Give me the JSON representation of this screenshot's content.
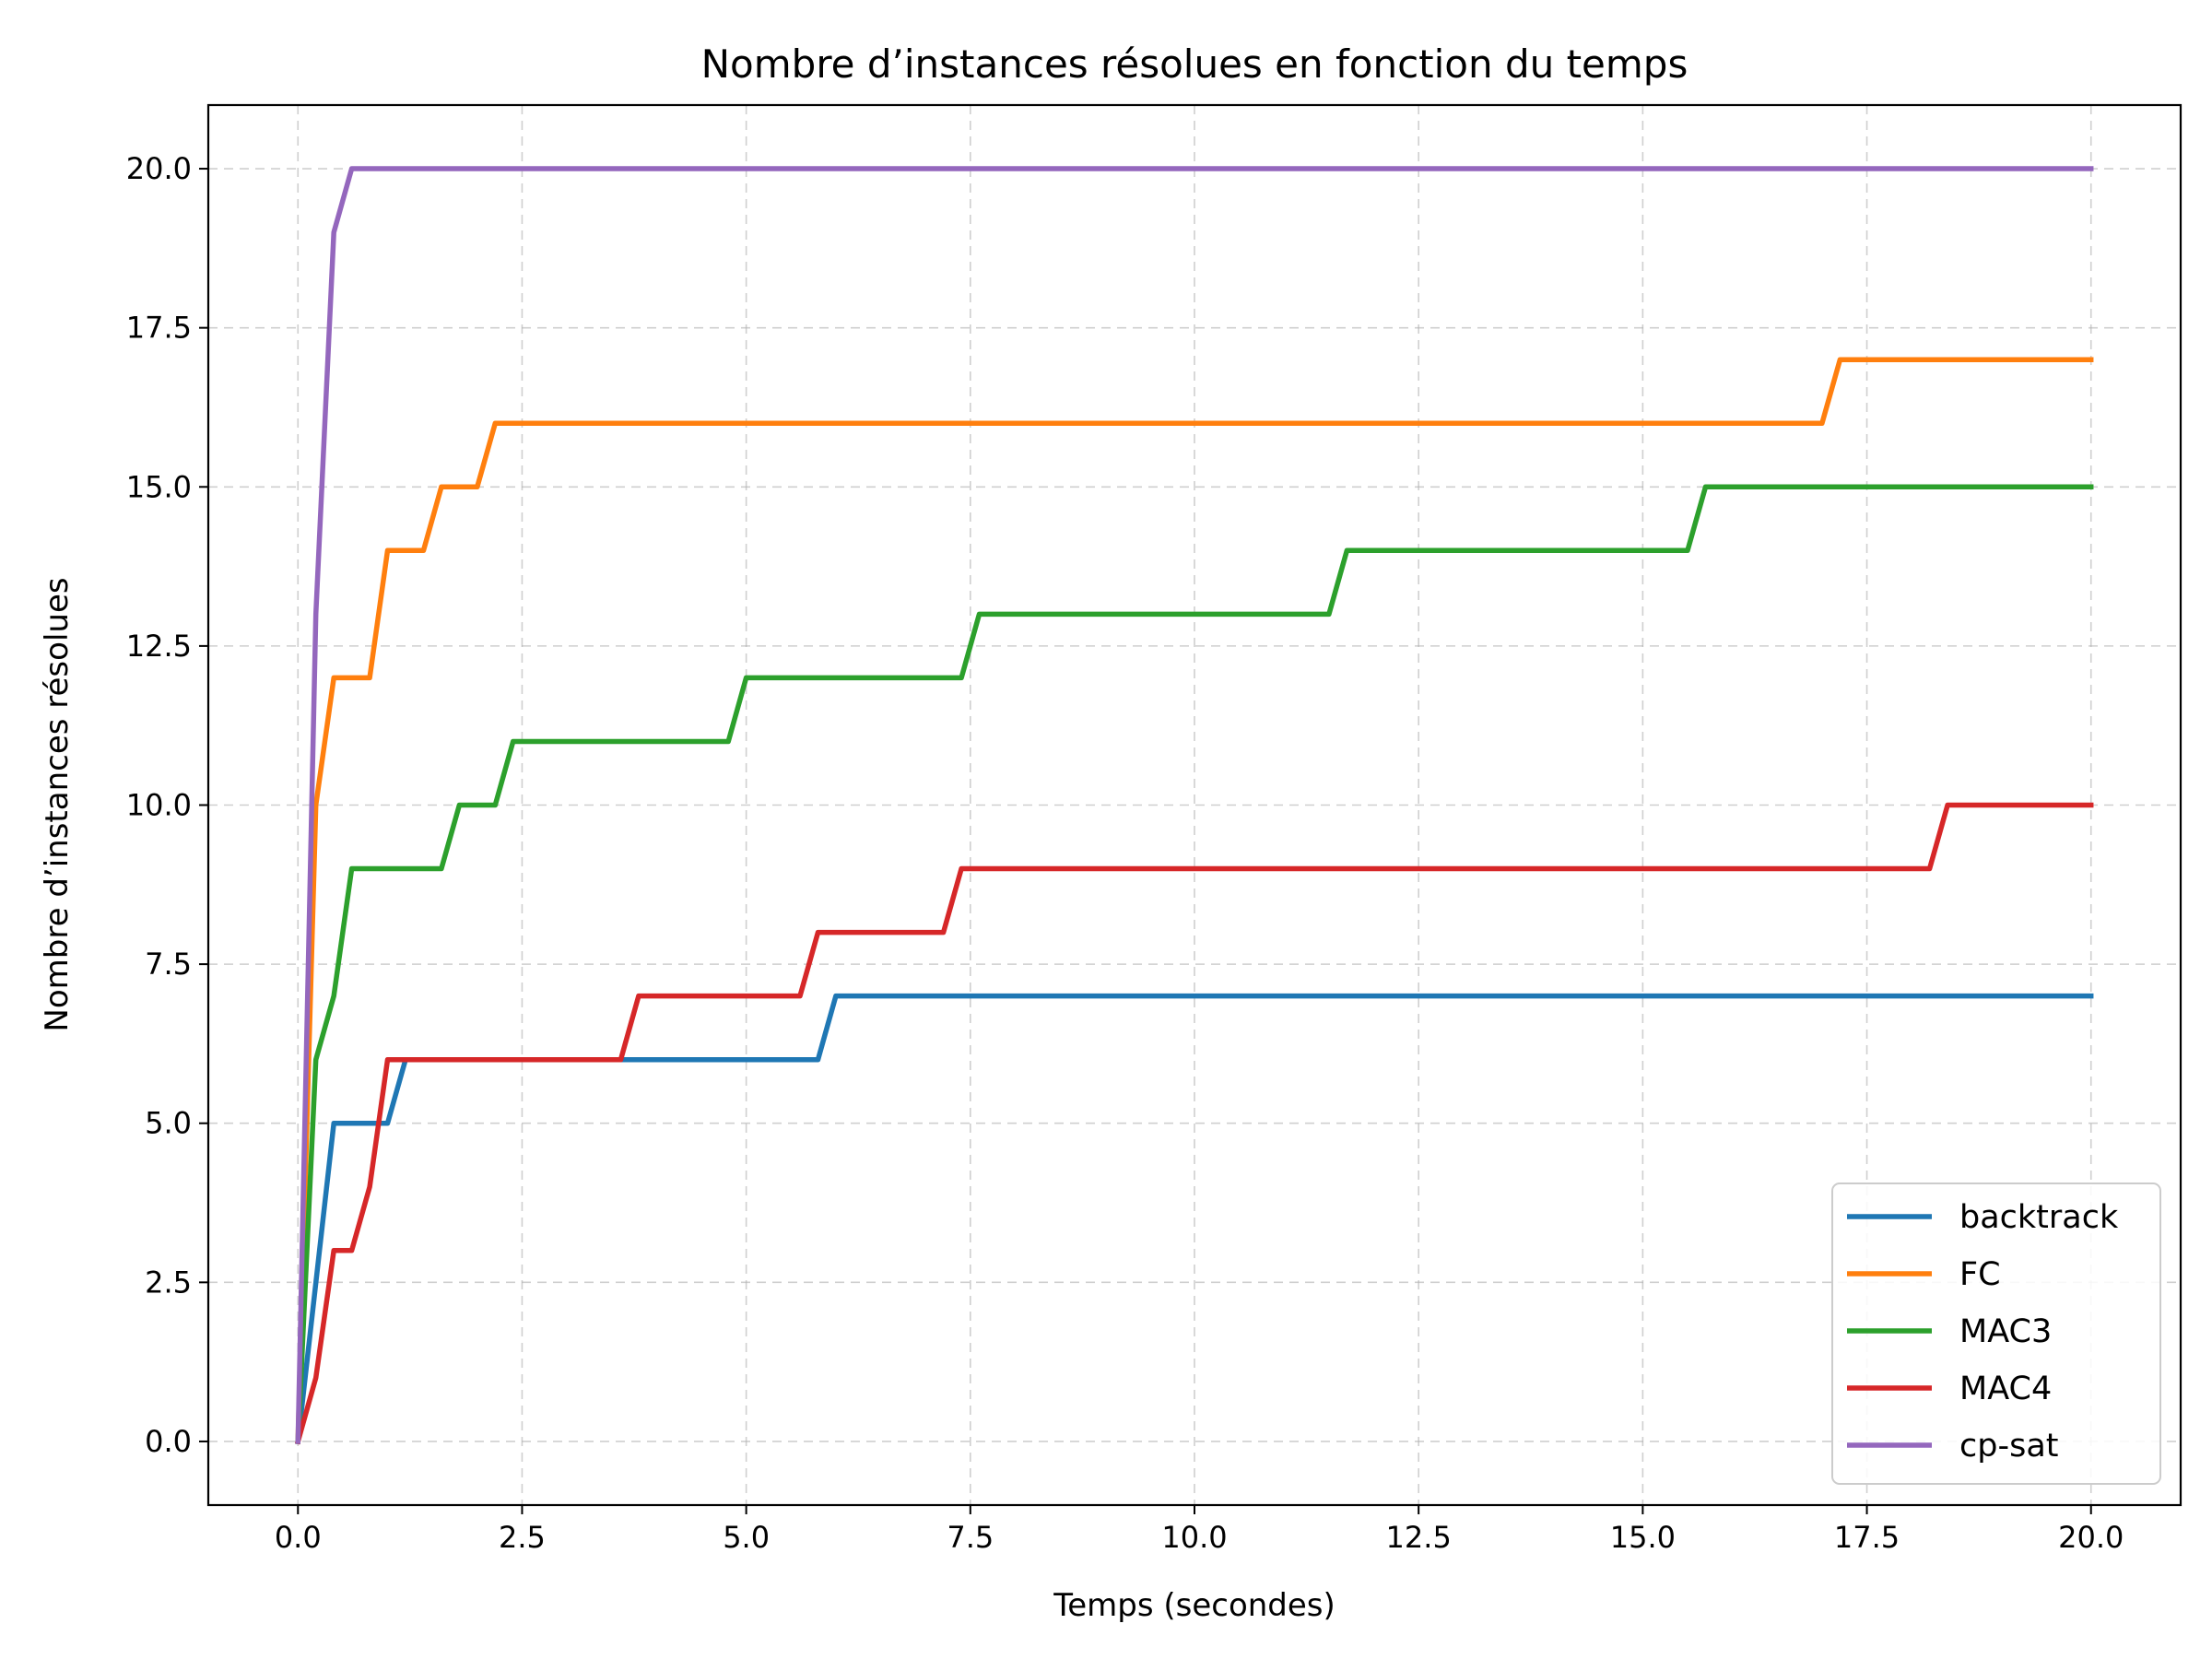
{
  "chart_data": {
    "type": "line",
    "title": "Nombre d’instances résolues en fonction du temps",
    "xlabel": "Temps (secondes)",
    "ylabel": "Nombre d’instances résolues",
    "xlim": [
      -1.0,
      21.0
    ],
    "ylim": [
      -1.0,
      21.0
    ],
    "x_ticks": [
      0.0,
      2.5,
      5.0,
      7.5,
      10.0,
      12.5,
      15.0,
      17.5,
      20.0
    ],
    "x_tick_labels": [
      "0.0",
      "2.5",
      "5.0",
      "7.5",
      "10.0",
      "12.5",
      "15.0",
      "17.5",
      "20.0"
    ],
    "y_ticks": [
      0.0,
      2.5,
      5.0,
      7.5,
      10.0,
      12.5,
      15.0,
      17.5,
      20.0
    ],
    "y_tick_labels": [
      "0.0",
      "2.5",
      "5.0",
      "7.5",
      "10.0",
      "12.5",
      "15.0",
      "17.5",
      "20.0"
    ],
    "grid": true,
    "legend_position": "lower-right",
    "series": [
      {
        "name": "backtrack",
        "color": "#1f77b4",
        "points": [
          [
            0.0,
            0
          ],
          [
            0.4,
            5
          ],
          [
            1.0,
            5
          ],
          [
            1.2,
            6
          ],
          [
            5.8,
            6
          ],
          [
            6.0,
            7
          ],
          [
            20.0,
            7
          ]
        ]
      },
      {
        "name": "FC",
        "color": "#ff7f0e",
        "points": [
          [
            0.0,
            0
          ],
          [
            0.2,
            10
          ],
          [
            0.4,
            12
          ],
          [
            0.8,
            12
          ],
          [
            1.0,
            14
          ],
          [
            1.4,
            14
          ],
          [
            1.6,
            15
          ],
          [
            2.0,
            15
          ],
          [
            2.2,
            16
          ],
          [
            17.0,
            16
          ],
          [
            17.2,
            17
          ],
          [
            20.0,
            17
          ]
        ]
      },
      {
        "name": "MAC3",
        "color": "#2ca02c",
        "points": [
          [
            0.0,
            0
          ],
          [
            0.2,
            6
          ],
          [
            0.4,
            7
          ],
          [
            0.6,
            9
          ],
          [
            1.6,
            9
          ],
          [
            1.8,
            10
          ],
          [
            2.2,
            10
          ],
          [
            2.4,
            11
          ],
          [
            4.8,
            11
          ],
          [
            5.0,
            12
          ],
          [
            7.4,
            12
          ],
          [
            7.6,
            13
          ],
          [
            11.5,
            13
          ],
          [
            11.7,
            14
          ],
          [
            15.5,
            14
          ],
          [
            15.7,
            15
          ],
          [
            20.0,
            15
          ]
        ]
      },
      {
        "name": "MAC4",
        "color": "#d62728",
        "points": [
          [
            0.0,
            0
          ],
          [
            0.2,
            1
          ],
          [
            0.4,
            3
          ],
          [
            0.6,
            3
          ],
          [
            0.8,
            4
          ],
          [
            1.0,
            6
          ],
          [
            3.6,
            6
          ],
          [
            3.8,
            7
          ],
          [
            5.6,
            7
          ],
          [
            5.8,
            8
          ],
          [
            7.2,
            8
          ],
          [
            7.4,
            9
          ],
          [
            18.2,
            9
          ],
          [
            18.4,
            10
          ],
          [
            20.0,
            10
          ]
        ]
      },
      {
        "name": "cp-sat",
        "color": "#9467bd",
        "points": [
          [
            0.0,
            0
          ],
          [
            0.2,
            13
          ],
          [
            0.4,
            19
          ],
          [
            0.6,
            20
          ],
          [
            20.0,
            20
          ]
        ]
      }
    ]
  }
}
